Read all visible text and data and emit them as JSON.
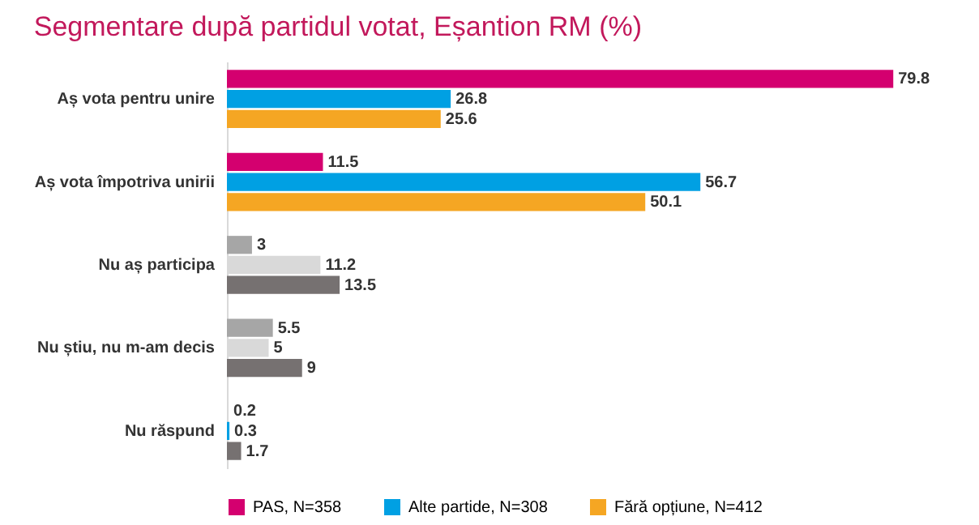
{
  "chart_data": {
    "type": "bar",
    "orientation": "horizontal",
    "title": "Segmentare după partidul votat, Eșantion RM (%)",
    "categories": [
      "Aș vota pentru unire",
      "Aș vota împotriva unirii",
      "Nu aș participa",
      "Nu știu, nu m-am decis",
      "Nu răspund"
    ],
    "series": [
      {
        "name": "PAS, N=358",
        "color": "#d4006f",
        "colors": [
          "#d4006f",
          "#d4006f",
          "#a6a6a6",
          "#a6a6a6",
          "#d9d9d9"
        ],
        "values": [
          79.8,
          11.5,
          3,
          5.5,
          0.2
        ]
      },
      {
        "name": "Alte partide, N=308",
        "color": "#00a0e3",
        "colors": [
          "#00a0e3",
          "#00a0e3",
          "#d9d9d9",
          "#d9d9d9",
          "#00a0e3"
        ],
        "values": [
          26.8,
          56.7,
          11.2,
          5,
          0.3
        ]
      },
      {
        "name": "Fără opțiune, N=412",
        "color": "#f5a623",
        "colors": [
          "#f5a623",
          "#f5a623",
          "#767171",
          "#767171",
          "#767171"
        ],
        "values": [
          25.6,
          50.1,
          13.5,
          9,
          1.7
        ]
      }
    ],
    "data_labels": true,
    "legend": "bottom",
    "grid": false
  }
}
